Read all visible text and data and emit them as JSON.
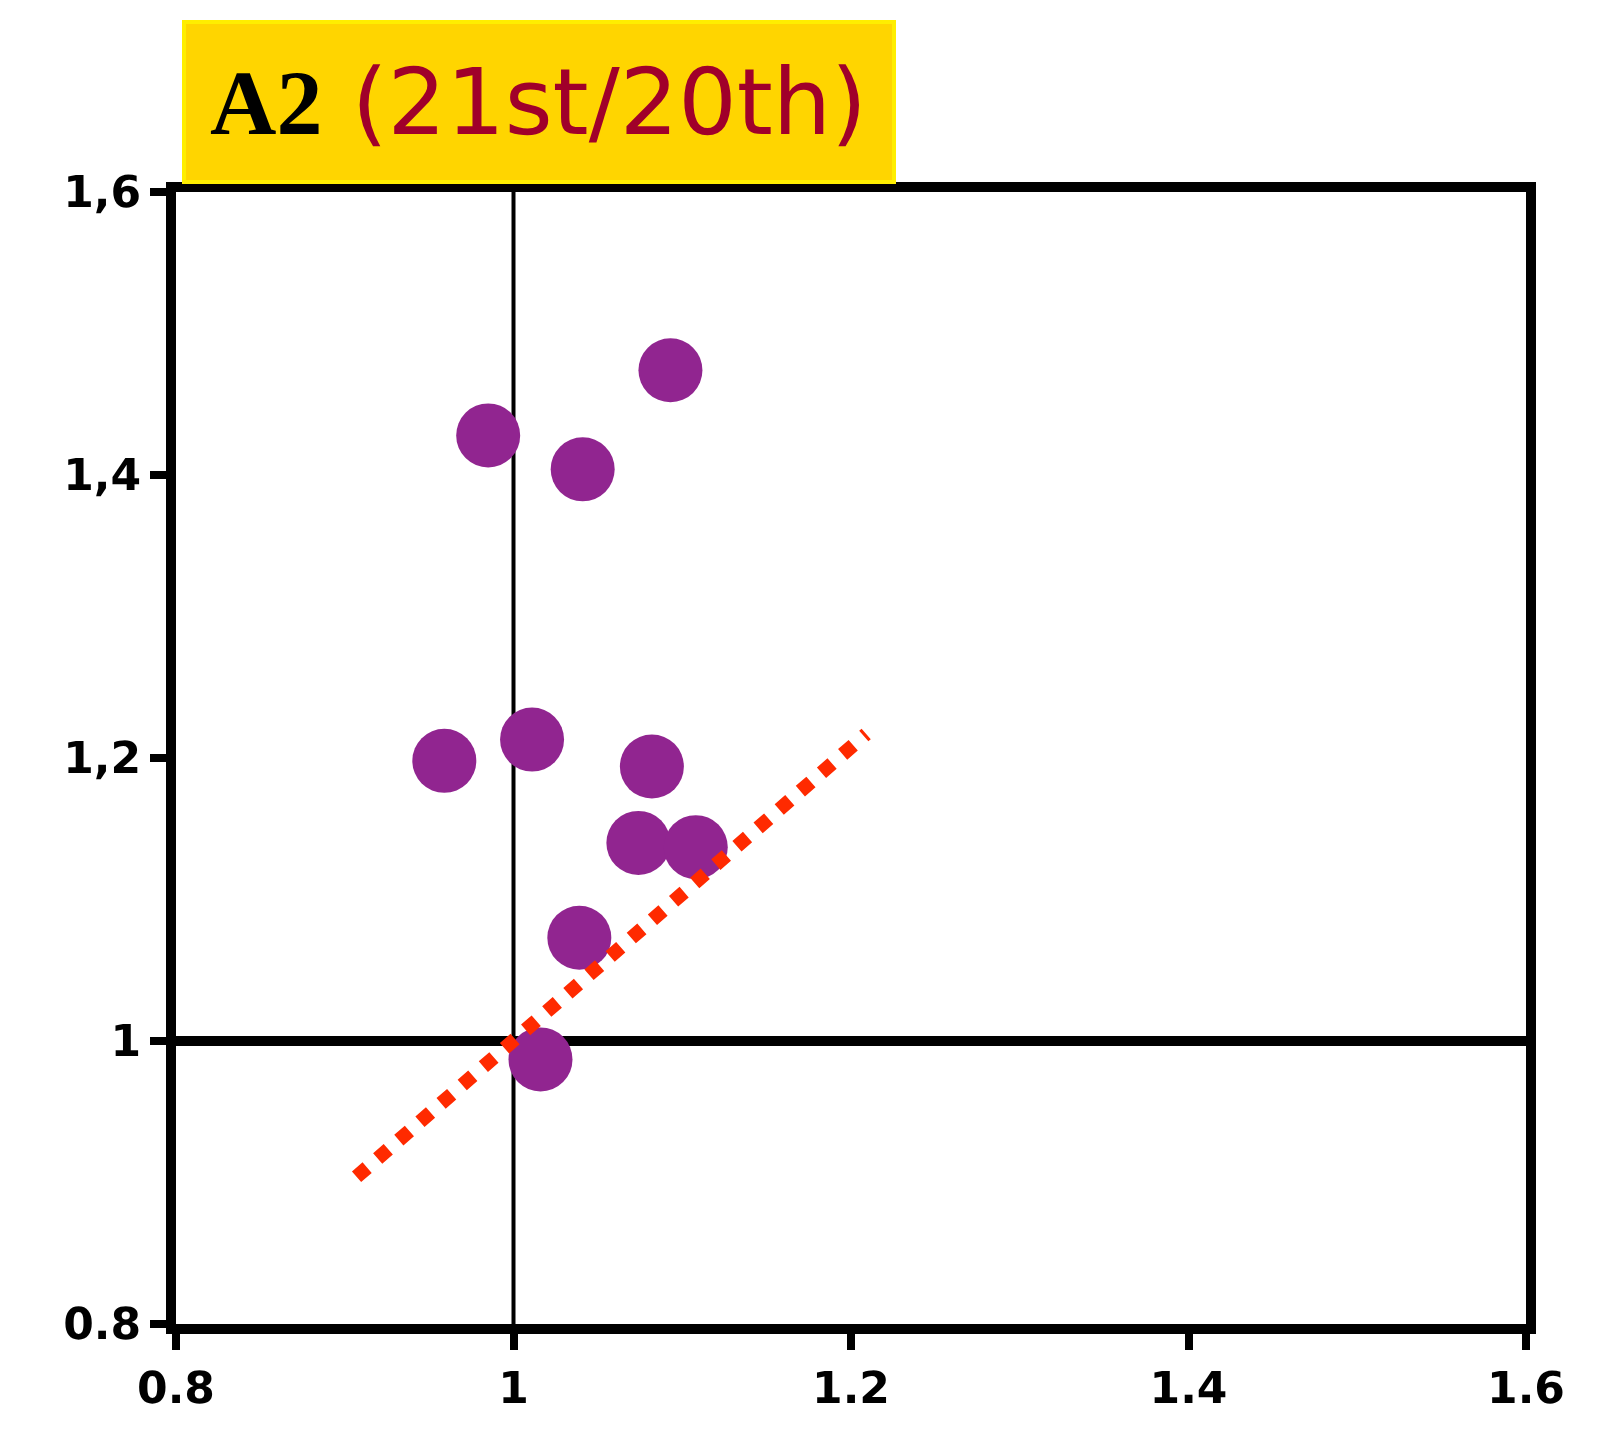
{
  "chart_data": {
    "type": "scatter",
    "title": "A2 (21st/20th)",
    "series": [
      {
        "color": "#912590",
        "marker": "circle",
        "x": [
          1.093,
          0.985,
          1.041,
          0.959,
          1.011,
          1.082,
          1.074,
          1.108,
          1.039,
          1.016
        ],
        "values": [
          1.474,
          1.428,
          1.404,
          1.198,
          1.213,
          1.194,
          1.14,
          1.137,
          1.073,
          0.987
        ]
      },
      {
        "type": "line",
        "color": "#ff2a00",
        "line_style": "dotted",
        "marker": "none",
        "x": [
          0.907,
          1.209
        ],
        "values": [
          0.904,
          1.217
        ]
      }
    ],
    "xlim": [
      0.8,
      1.6
    ],
    "xticks": [
      0.8,
      1,
      1.2,
      1.4,
      1.6
    ],
    "ylim": [
      0.8,
      1.6
    ],
    "yticks": [
      0.8,
      1,
      {
        "value": 1.2,
        "label": "1,2"
      },
      {
        "value": 1.4,
        "label": "1,4"
      },
      {
        "value": 1.6,
        "label": "1,6"
      }
    ],
    "ref_lines": [
      {
        "axis": "y",
        "value": 1,
        "color": "#000000"
      },
      {
        "axis": "x",
        "value": 1,
        "color": "#000000"
      }
    ],
    "grid": false,
    "legend": false
  }
}
